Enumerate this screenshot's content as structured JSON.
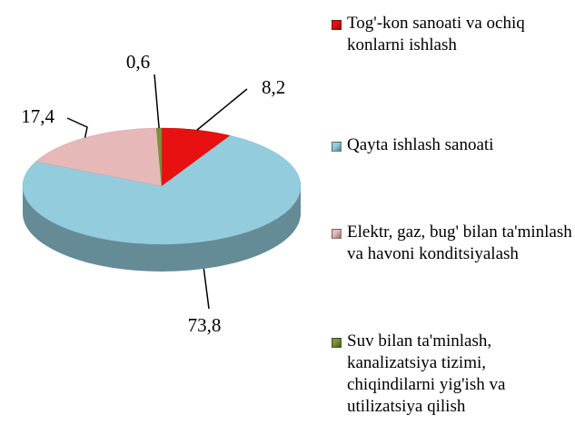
{
  "chart_data": {
    "type": "pie",
    "categories": [
      "Tog'-kon sanoati va ochiq konlarni ishlash",
      "Qayta ishlash sanoati",
      "Elektr, gaz, bug' bilan ta'minlash va havoni konditsiyalash",
      "Suv bilan ta'minlash, kanalizatsiya tizimi, chiqindilarni yig'ish va utilizatsiya qilish"
    ],
    "values": [
      8.2,
      73.8,
      17.4,
      0.6
    ],
    "value_labels": [
      "8,2",
      "73,8",
      "17,4",
      "0,6"
    ],
    "colors": [
      "#e81010",
      "#93cddd",
      "#e6b9b8",
      "#77933c"
    ]
  }
}
